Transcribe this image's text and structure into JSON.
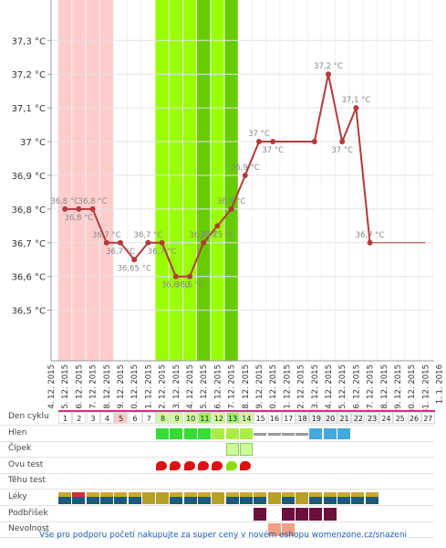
{
  "chart_data": {
    "type": "line",
    "title": "",
    "xlabel": "",
    "ylabel": "",
    "ylim": [
      36.35,
      37.42
    ],
    "y_ticks": [
      "36,5 °C",
      "36,6 °C",
      "36,7 °C",
      "36,8 °C",
      "36,9 °C",
      "37 °C",
      "37,1 °C",
      "37,2 °C",
      "37,3 °C"
    ],
    "y_tick_values": [
      36.5,
      36.6,
      36.7,
      36.8,
      36.9,
      37.0,
      37.1,
      37.2,
      37.3
    ],
    "x_labels": [
      "4. 12. 2015",
      "5. 12. 2015",
      "6. 12. 2015",
      "7. 12. 2015",
      "8. 12. 2015",
      "9. 12. 2015",
      "10. 12. 2015",
      "11. 12. 2015",
      "12. 12. 2015",
      "13. 12. 2015",
      "14. 12. 2015",
      "15. 12. 2015",
      "16. 12. 2015",
      "17. 12. 2015",
      "18. 12. 2015",
      "19. 12. 2015",
      "20. 12. 2015",
      "21. 12. 2015",
      "22. 12. 2015",
      "23. 12. 2015",
      "24. 12. 2015",
      "25. 12. 2015",
      "26. 12. 2015",
      "27. 12. 2015",
      "28. 12. 2015",
      "29. 12. 2015",
      "30. 12. 2015",
      "31. 12. 2015",
      "1. 1. 2016"
    ],
    "series": [
      {
        "color": "#b33a3a",
        "points": [
          {
            "x": 1,
            "y": 36.8,
            "label": "36,8 °C"
          },
          {
            "x": 2,
            "y": 36.8,
            "label": "36,8 °C"
          },
          {
            "x": 3,
            "y": 36.8,
            "label": "36,8 °C"
          },
          {
            "x": 4,
            "y": 36.7,
            "label": "36,7 °C"
          },
          {
            "x": 5,
            "y": 36.7,
            "label": "36,7 °C"
          },
          {
            "x": 6,
            "y": 36.65,
            "label": "36,65 °C"
          },
          {
            "x": 7,
            "y": 36.7,
            "label": "36,7 °C"
          },
          {
            "x": 8,
            "y": 36.7,
            "label": "36,7 °C"
          },
          {
            "x": 9,
            "y": 36.6,
            "label": "36,6 °C"
          },
          {
            "x": 10,
            "y": 36.6,
            "label": "36,6 °C"
          },
          {
            "x": 11,
            "y": 36.7,
            "label": "36,7 °C"
          },
          {
            "x": 12,
            "y": 36.75,
            "label": "36,75 °C"
          },
          {
            "x": 13,
            "y": 36.8,
            "label": "36,8 °C"
          },
          {
            "x": 14,
            "y": 36.9,
            "label": "36,9 °C"
          },
          {
            "x": 15,
            "y": 37.0,
            "label": "37 °C"
          },
          {
            "x": 16,
            "y": 37.0,
            "label": "37 °C"
          },
          {
            "x": 19,
            "y": 37.0,
            "label": ""
          },
          {
            "x": 20,
            "y": 37.2,
            "label": "37,2 °C"
          },
          {
            "x": 21,
            "y": 37.0,
            "label": "37 °C"
          },
          {
            "x": 22,
            "y": 37.1,
            "label": "37,1 °C"
          },
          {
            "x": 23,
            "y": 36.7,
            "label": "36,7 °C"
          }
        ],
        "trail": {
          "from": 23,
          "to": 27,
          "y": 36.7
        }
      }
    ],
    "label_sides": [
      "above",
      "below",
      "above",
      "above",
      "below",
      "below",
      "above",
      "below",
      "below",
      "below",
      "above",
      "below",
      "above",
      "above",
      "above",
      "below",
      "above",
      "above",
      "below",
      "above",
      "above"
    ],
    "bands": [
      {
        "from": 0.5,
        "to": 4.5,
        "color": "#ffcccc"
      },
      {
        "from": 7.5,
        "to": 13.5,
        "color": "#99ff00"
      },
      {
        "from": 10.5,
        "to": 11.5,
        "color": "#66cc00"
      },
      {
        "from": 12.5,
        "to": 13.5,
        "color": "#66cc00"
      }
    ],
    "line_color": "#b33a3a",
    "grid": true
  },
  "table": {
    "rows": [
      {
        "label": "Den cyklu",
        "type": "days"
      },
      {
        "label": "Hlen",
        "type": "mucus"
      },
      {
        "label": "Čípek",
        "type": "cervix"
      },
      {
        "label": "Ovu test",
        "type": "ovu"
      },
      {
        "label": "Těhu test",
        "type": "preg"
      },
      {
        "label": "Léky",
        "type": "meds"
      },
      {
        "label": "Podbřišek",
        "type": "abdomen"
      },
      {
        "label": "Nevolnost",
        "type": "nausea"
      }
    ],
    "days": [
      "1",
      "2",
      "3",
      "4",
      "5",
      "6",
      "7",
      "8",
      "9",
      "10",
      "11",
      "12",
      "13",
      "14",
      "15",
      "16",
      "17",
      "18",
      "19",
      "20",
      "21",
      "22",
      "23",
      "24",
      "25",
      "26",
      "27"
    ],
    "mucus": {
      "11": "#33dd33",
      "12": "#33dd33",
      "13": "#33dd33",
      "14": "#33dd33",
      "15": "#aaee44",
      "16": "#aaee44",
      "17": "#aaee44",
      "18": "#999999",
      "19": "#999999",
      "20": "#999999",
      "21": "#999999",
      "22": "#44aadd",
      "23": "#44aadd",
      "24": "#44aadd"
    },
    "cervix": [
      16,
      17
    ],
    "ovu": {
      "11": "#dd1111",
      "12": "#dd1111",
      "13": "#dd1111",
      "14": "#dd1111",
      "15": "#dd1111",
      "16": "#88dd11",
      "17": "#dd1111"
    },
    "meds": [
      1,
      2,
      3,
      4,
      5,
      6,
      7,
      8,
      9,
      10,
      11,
      12,
      13,
      14,
      15,
      16,
      17,
      18,
      19,
      20,
      21,
      22,
      23
    ],
    "abdomen": [
      17,
      19,
      20,
      21,
      22
    ],
    "nausea": [
      16,
      17
    ],
    "colors": {
      "pink": "#ffc8c8",
      "green_light": "#ccff99",
      "green_dark": "#99ee66",
      "cycle_bar": "#cc3388"
    }
  },
  "footer": {
    "text": "Vše pro podporu početí nakupujte za super ceny v novém eshopu womenzone.cz/snazeni"
  }
}
